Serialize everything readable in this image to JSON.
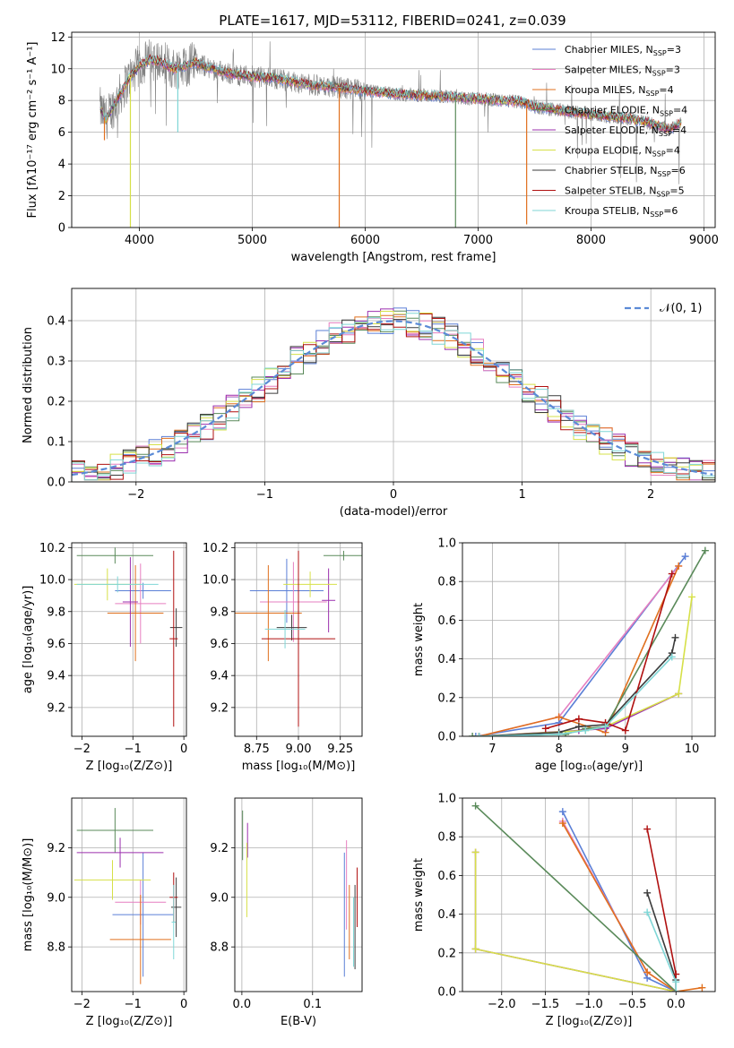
{
  "figure": {
    "title": "PLATE=1617, MJD=53112, FIBERID=0241, z=0.039"
  },
  "colors": {
    "Chabrier MILES": "#5b7fd6",
    "Salpeter MILES": "#e67fc0",
    "Kroupa MILES": "#e0701e",
    "Chabrier ELODIE": "#5a8a5a",
    "Salpeter ELODIE": "#9b2fae",
    "Kroupa ELODIE": "#d6e048",
    "Chabrier STELIB": "#3b3b3b",
    "Salpeter STELIB": "#b01010",
    "Kroupa STELIB": "#7fd6d6",
    "data": "#808080"
  },
  "chart_data": [
    {
      "id": "spectrum",
      "type": "line",
      "title": "PLATE=1617, MJD=53112, FIBERID=0241, z=0.039",
      "xlabel": "wavelength [Angstrom, rest frame]",
      "ylabel": "Flux [fλ10⁻¹⁷ erg cm⁻² s⁻¹ A⁻¹]",
      "xlim": [
        3400,
        9100
      ],
      "ylim": [
        0,
        12.3
      ],
      "xticks": [
        4000,
        5000,
        6000,
        7000,
        8000,
        9000
      ],
      "yticks": [
        0,
        2,
        4,
        6,
        8,
        10,
        12
      ],
      "legend": "top-right",
      "legend_entries": [
        {
          "label": "Chabrier MILES, N",
          "sub": "SSP",
          "suffix": "=3",
          "color": "#5b7fd6"
        },
        {
          "label": "Salpeter MILES, N",
          "sub": "SSP",
          "suffix": "=3",
          "color": "#e67fc0"
        },
        {
          "label": "Kroupa MILES, N",
          "sub": "SSP",
          "suffix": "=4",
          "color": "#e0701e"
        },
        {
          "label": "Chabrier ELODIE, N",
          "sub": "SSP",
          "suffix": "=4",
          "color": "#5a8a5a"
        },
        {
          "label": "Salpeter ELODIE, N",
          "sub": "SSP",
          "suffix": "=4",
          "color": "#9b2fae"
        },
        {
          "label": "Kroupa ELODIE, N",
          "sub": "SSP",
          "suffix": "=4",
          "color": "#d6e048"
        },
        {
          "label": "Chabrier STELIB, N",
          "sub": "SSP",
          "suffix": "=6",
          "color": "#3b3b3b"
        },
        {
          "label": "Salpeter STELIB, N",
          "sub": "SSP",
          "suffix": "=5",
          "color": "#b01010"
        },
        {
          "label": "Kroupa STELIB, N",
          "sub": "SSP",
          "suffix": "=6",
          "color": "#7fd6d6"
        }
      ],
      "continuum": {
        "x": [
          3650,
          3700,
          3800,
          3900,
          4000,
          4100,
          4200,
          4300,
          4400,
          4500,
          4600,
          4800,
          5000,
          5200,
          5500,
          5800,
          6000,
          6300,
          6600,
          7000,
          7400,
          7500,
          7800,
          8000,
          8300,
          8500,
          8700,
          8800
        ],
        "y": [
          7.5,
          6.8,
          8.0,
          9.3,
          10.2,
          10.6,
          10.4,
          10.0,
          10.2,
          10.4,
          10.1,
          9.7,
          9.5,
          9.4,
          9.0,
          8.8,
          8.6,
          8.4,
          8.3,
          8.1,
          7.9,
          7.6,
          7.3,
          7.1,
          6.9,
          6.6,
          6.2,
          6.6
        ]
      },
      "model_dips": [
        {
          "x": 5770,
          "y": 0,
          "color": "#e0701e"
        },
        {
          "x": 6800,
          "y": 0,
          "color": "#5a8a5a"
        },
        {
          "x": 7430,
          "y": 0.2,
          "color": "#e0701e"
        },
        {
          "x": 3920,
          "y": 0,
          "color": "#d6e048"
        },
        {
          "x": 3690,
          "y": 5.5,
          "color": "#e0701e"
        },
        {
          "x": 4340,
          "y": 6.0,
          "color": "#7fd6d6"
        }
      ]
    },
    {
      "id": "residuals",
      "type": "bar",
      "xlabel": "(data-model)/error",
      "ylabel": "Normed distribution",
      "xlim": [
        -2.5,
        2.5
      ],
      "ylim": [
        0,
        0.48
      ],
      "xticks": [
        -2,
        -1,
        0,
        1,
        2
      ],
      "yticks": [
        0.0,
        0.1,
        0.2,
        0.3,
        0.4
      ],
      "legend": "top-right",
      "legend_label": "𝒩(0, 1)",
      "gaussian": {
        "mu": 0,
        "sigma": 1
      }
    },
    {
      "id": "age_vs_Z",
      "type": "scatter",
      "xlabel": "Z [log₁₀(Z/Z⊙)]",
      "ylabel": "age  [log₁₀(age/yr)]",
      "xlim": [
        -2.2,
        0.05
      ],
      "ylim": [
        9.02,
        10.23
      ],
      "xticks": [
        -2,
        -1,
        0
      ],
      "yticks": [
        9.2,
        9.4,
        9.6,
        9.8,
        10.0,
        10.2
      ],
      "points": [
        {
          "x": -0.8,
          "y": 9.93,
          "xerr": 0.55,
          "yerr": 0.05,
          "color": "#5b7fd6"
        },
        {
          "x": -0.85,
          "y": 9.85,
          "xerr": 0.5,
          "yerr": 0.25,
          "color": "#e67fc0"
        },
        {
          "x": -0.95,
          "y": 9.79,
          "xerr": 0.55,
          "yerr": 0.3,
          "color": "#e0701e"
        },
        {
          "x": -1.35,
          "y": 10.15,
          "xerr": 0.75,
          "yerr": 0.05,
          "color": "#5a8a5a"
        },
        {
          "x": -1.05,
          "y": 9.86,
          "xerr": 0.15,
          "yerr": 0.28,
          "color": "#9b2fae"
        },
        {
          "x": -1.5,
          "y": 9.97,
          "xerr": 0.65,
          "yerr": 0.1,
          "color": "#d6e048"
        },
        {
          "x": -0.15,
          "y": 9.7,
          "xerr": 0.12,
          "yerr": 0.12,
          "color": "#3b3b3b"
        },
        {
          "x": -0.2,
          "y": 9.63,
          "xerr": 0.08,
          "yerr": 0.55,
          "color": "#b01010"
        },
        {
          "x": -1.3,
          "y": 9.97,
          "xerr": 0.8,
          "yerr": 0.05,
          "color": "#7fd6d6"
        }
      ]
    },
    {
      "id": "age_vs_mass",
      "type": "scatter",
      "xlabel": "mass [log₁₀(M/M⊙)]",
      "ylabel": "",
      "xlim": [
        8.62,
        9.38
      ],
      "ylim": [
        9.02,
        10.23
      ],
      "xticks": [
        8.75,
        9.0,
        9.25
      ],
      "xticklabels": [
        "8.75",
        "9.00",
        "9.25"
      ],
      "yticks": [
        9.2,
        9.4,
        9.6,
        9.8,
        10.0,
        10.2
      ],
      "points": [
        {
          "x": 8.93,
          "y": 9.93,
          "xerr": 0.22,
          "yerr": 0.2,
          "color": "#5b7fd6"
        },
        {
          "x": 8.97,
          "y": 9.86,
          "xerr": 0.2,
          "yerr": 0.25,
          "color": "#e67fc0"
        },
        {
          "x": 8.82,
          "y": 9.79,
          "xerr": 0.2,
          "yerr": 0.3,
          "color": "#e0701e"
        },
        {
          "x": 9.27,
          "y": 10.15,
          "xerr": 0.12,
          "yerr": 0.03,
          "color": "#5a8a5a"
        },
        {
          "x": 9.18,
          "y": 9.87,
          "xerr": 0.04,
          "yerr": 0.2,
          "color": "#9b2fae"
        },
        {
          "x": 9.07,
          "y": 9.97,
          "xerr": 0.16,
          "yerr": 0.08,
          "color": "#d6e048"
        },
        {
          "x": 8.96,
          "y": 9.7,
          "xerr": 0.09,
          "yerr": 0.08,
          "color": "#3b3b3b"
        },
        {
          "x": 9.0,
          "y": 9.63,
          "xerr": 0.22,
          "yerr": 0.55,
          "color": "#b01010"
        },
        {
          "x": 8.92,
          "y": 9.69,
          "xerr": 0.12,
          "yerr": 0.12,
          "color": "#7fd6d6"
        }
      ]
    },
    {
      "id": "mass_weight_vs_age",
      "type": "line",
      "xlabel": "age  [log₁₀(age/yr)]",
      "ylabel": "mass weight",
      "xlim": [
        6.55,
        10.35
      ],
      "ylim": [
        0,
        1.0
      ],
      "xticks": [
        7,
        8,
        9,
        10
      ],
      "yticks": [
        0.0,
        0.2,
        0.4,
        0.6,
        0.8,
        1.0
      ],
      "series": [
        {
          "color": "#5b7fd6",
          "x": [
            6.75,
            8.0,
            9.9
          ],
          "y": [
            0.0,
            0.07,
            0.93
          ]
        },
        {
          "color": "#e67fc0",
          "x": [
            6.8,
            8.0,
            9.8
          ],
          "y": [
            0.0,
            0.1,
            0.88
          ]
        },
        {
          "color": "#e0701e",
          "x": [
            6.8,
            8.0,
            8.7,
            9.8
          ],
          "y": [
            0.0,
            0.1,
            0.02,
            0.88
          ]
        },
        {
          "color": "#5a8a5a",
          "x": [
            6.7,
            8.1,
            8.4,
            8.7,
            10.2
          ],
          "y": [
            0.0,
            0.01,
            0.04,
            0.05,
            0.96
          ]
        },
        {
          "color": "#9b2fae",
          "x": [
            6.8,
            8.3,
            8.7,
            9.8
          ],
          "y": [
            0.0,
            0.03,
            0.04,
            0.22
          ]
        },
        {
          "color": "#d6e048",
          "x": [
            6.8,
            8.4,
            8.7,
            9.8,
            10.0
          ],
          "y": [
            0.0,
            0.03,
            0.05,
            0.22,
            0.72
          ]
        },
        {
          "color": "#3b3b3b",
          "x": [
            6.8,
            8.0,
            8.3,
            8.7,
            9.7,
            9.75
          ],
          "y": [
            0.0,
            0.02,
            0.05,
            0.06,
            0.43,
            0.51
          ]
        },
        {
          "color": "#b01010",
          "x": [
            7.8,
            8.3,
            8.7,
            9.0,
            9.7
          ],
          "y": [
            0.04,
            0.09,
            0.07,
            0.03,
            0.84
          ]
        },
        {
          "color": "#7fd6d6",
          "x": [
            6.8,
            8.0,
            8.4,
            8.7,
            9.7
          ],
          "y": [
            0.0,
            0.01,
            0.03,
            0.05,
            0.41
          ]
        }
      ]
    },
    {
      "id": "mass_vs_Z",
      "type": "scatter",
      "xlabel": "Z [log₁₀(Z/Z⊙)]",
      "ylabel": "mass [log₁₀(M/M⊙)]",
      "xlim": [
        -2.2,
        0.05
      ],
      "ylim": [
        8.62,
        9.4
      ],
      "xticks": [
        -2,
        -1,
        0
      ],
      "yticks": [
        8.8,
        9.0,
        9.2
      ],
      "points": [
        {
          "x": -0.8,
          "y": 8.93,
          "xerr": 0.6,
          "yerr": 0.25,
          "color": "#5b7fd6"
        },
        {
          "x": -0.85,
          "y": 8.98,
          "xerr": 0.5,
          "yerr": 0.09,
          "color": "#e67fc0"
        },
        {
          "x": -0.85,
          "y": 8.83,
          "xerr": 0.6,
          "yerr": 0.18,
          "color": "#e0701e"
        },
        {
          "x": -1.35,
          "y": 9.27,
          "xerr": 0.75,
          "yerr": 0.09,
          "color": "#5a8a5a"
        },
        {
          "x": -1.25,
          "y": 9.18,
          "xerr": 0.85,
          "yerr": 0.06,
          "color": "#9b2fae"
        },
        {
          "x": -1.4,
          "y": 9.07,
          "xerr": 0.75,
          "yerr": 0.08,
          "color": "#d6e048"
        },
        {
          "x": -0.15,
          "y": 8.96,
          "xerr": 0.1,
          "yerr": 0.12,
          "color": "#3b3b3b"
        },
        {
          "x": -0.2,
          "y": 9.0,
          "xerr": 0.08,
          "yerr": 0.1,
          "color": "#b01010"
        },
        {
          "x": -0.2,
          "y": 8.9,
          "xerr": 0.04,
          "yerr": 0.15,
          "color": "#7fd6d6"
        }
      ]
    },
    {
      "id": "mass_vs_EBV",
      "type": "scatter",
      "xlabel": "E(B-V)",
      "ylabel": "",
      "xlim": [
        -0.01,
        0.17
      ],
      "ylim": [
        8.62,
        9.4
      ],
      "xticks": [
        0.0,
        0.1
      ],
      "xticklabels": [
        "0.0",
        "0.1"
      ],
      "yticks": [
        8.8,
        9.0,
        9.2
      ],
      "points": [
        {
          "x": 0.145,
          "y": 8.93,
          "xerr": 0,
          "yerr": 0.25,
          "color": "#5b7fd6"
        },
        {
          "x": 0.148,
          "y": 9.05,
          "xerr": 0,
          "yerr": 0.18,
          "color": "#e67fc0"
        },
        {
          "x": 0.152,
          "y": 8.9,
          "xerr": 0,
          "yerr": 0.15,
          "color": "#e0701e"
        },
        {
          "x": 0.001,
          "y": 9.25,
          "xerr": 0,
          "yerr": 0.1,
          "color": "#5a8a5a"
        },
        {
          "x": 0.008,
          "y": 9.23,
          "xerr": 0,
          "yerr": 0.07,
          "color": "#9b2fae"
        },
        {
          "x": 0.007,
          "y": 9.07,
          "xerr": 0,
          "yerr": 0.15,
          "color": "#d6e048"
        },
        {
          "x": 0.16,
          "y": 8.88,
          "xerr": 0,
          "yerr": 0.17,
          "color": "#3b3b3b"
        },
        {
          "x": 0.163,
          "y": 9.0,
          "xerr": 0,
          "yerr": 0.12,
          "color": "#b01010"
        },
        {
          "x": 0.158,
          "y": 8.86,
          "xerr": 0,
          "yerr": 0.14,
          "color": "#7fd6d6"
        }
      ]
    },
    {
      "id": "mass_weight_vs_Z",
      "type": "line",
      "xlabel": "Z [log₁₀(Z/Z⊙)]",
      "ylabel": "mass weight",
      "xlim": [
        -2.45,
        0.45
      ],
      "ylim": [
        0,
        1.0
      ],
      "xticks": [
        -2.0,
        -1.5,
        -1.0,
        -0.5,
        0.0
      ],
      "xticklabels": [
        "−2.0",
        "−1.5",
        "−1.0",
        "−0.5",
        "0.0"
      ],
      "yticks": [
        0.0,
        0.2,
        0.4,
        0.6,
        0.8,
        1.0
      ],
      "series": [
        {
          "color": "#5b7fd6",
          "x": [
            -1.3,
            -0.33,
            0.0
          ],
          "y": [
            0.93,
            0.07,
            0.0
          ]
        },
        {
          "color": "#e67fc0",
          "x": [
            -1.3,
            -0.33,
            0.0
          ],
          "y": [
            0.88,
            0.1,
            0.0
          ]
        },
        {
          "color": "#e0701e",
          "x": [
            -1.3,
            -0.33,
            0.0,
            0.3
          ],
          "y": [
            0.87,
            0.1,
            0.0,
            0.02
          ]
        },
        {
          "color": "#5a8a5a",
          "x": [
            -2.3,
            0.0
          ],
          "y": [
            0.96,
            0.0
          ]
        },
        {
          "color": "#9b2fae",
          "x": [
            -2.3,
            -2.3,
            0.0
          ],
          "y": [
            0.72,
            0.22,
            0.0
          ]
        },
        {
          "color": "#d6e048",
          "x": [
            -2.3,
            -2.3,
            0.0
          ],
          "y": [
            0.72,
            0.22,
            0.0
          ]
        },
        {
          "color": "#3b3b3b",
          "x": [
            -0.33,
            0.0,
            0.0
          ],
          "y": [
            0.51,
            0.06,
            0.0
          ]
        },
        {
          "color": "#b01010",
          "x": [
            -0.33,
            0.0,
            0.0
          ],
          "y": [
            0.84,
            0.09,
            0.0
          ]
        },
        {
          "color": "#7fd6d6",
          "x": [
            -0.33,
            0.0,
            0.0
          ],
          "y": [
            0.41,
            0.05,
            0.0
          ]
        }
      ]
    }
  ]
}
